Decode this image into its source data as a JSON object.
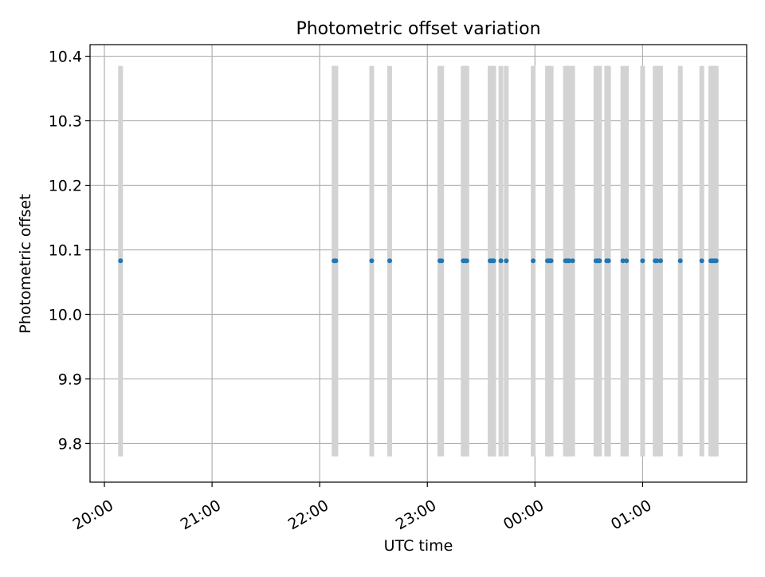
{
  "chart_data": {
    "type": "scatter",
    "title": "Photometric offset variation",
    "xlabel": "UTC time",
    "ylabel": "Photometric offset",
    "xlim": [
      "19:52",
      "25:58"
    ],
    "ylim": [
      9.74,
      10.418
    ],
    "x_ticks": [
      "20:00",
      "21:00",
      "22:00",
      "23:00",
      "00:00",
      "01:00"
    ],
    "x_tick_values": [
      "20:00",
      "21:00",
      "22:00",
      "23:00",
      "24:00",
      "25:00"
    ],
    "y_ticks": [
      "9.8",
      "9.9",
      "10.0",
      "10.1",
      "10.2",
      "10.3",
      "10.4"
    ],
    "y_tick_values": [
      9.8,
      9.9,
      10.0,
      10.1,
      10.2,
      10.3,
      10.4
    ],
    "grid": true,
    "error_range": [
      9.78,
      10.385
    ],
    "point_color": "#1f77b4",
    "band_color": "#d3d3d3",
    "points": [
      {
        "x": "20:09",
        "y": 10.083
      },
      {
        "x": "22:08",
        "y": 10.083
      },
      {
        "x": "22:09",
        "y": 10.083
      },
      {
        "x": "22:29",
        "y": 10.083
      },
      {
        "x": "22:39",
        "y": 10.083
      },
      {
        "x": "23:07",
        "y": 10.083
      },
      {
        "x": "23:08",
        "y": 10.083
      },
      {
        "x": "23:20",
        "y": 10.083
      },
      {
        "x": "23:21",
        "y": 10.083
      },
      {
        "x": "23:22",
        "y": 10.083
      },
      {
        "x": "23:35",
        "y": 10.083
      },
      {
        "x": "23:36",
        "y": 10.083
      },
      {
        "x": "23:37",
        "y": 10.083
      },
      {
        "x": "23:41",
        "y": 10.083
      },
      {
        "x": "23:44",
        "y": 10.083
      },
      {
        "x": "23:59",
        "y": 10.083
      },
      {
        "x": "24:07",
        "y": 10.083
      },
      {
        "x": "24:08",
        "y": 10.083
      },
      {
        "x": "24:09",
        "y": 10.083
      },
      {
        "x": "24:17",
        "y": 10.083
      },
      {
        "x": "24:18",
        "y": 10.083
      },
      {
        "x": "24:19",
        "y": 10.083
      },
      {
        "x": "24:21",
        "y": 10.083
      },
      {
        "x": "24:34",
        "y": 10.083
      },
      {
        "x": "24:35",
        "y": 10.083
      },
      {
        "x": "24:36",
        "y": 10.083
      },
      {
        "x": "24:40",
        "y": 10.083
      },
      {
        "x": "24:41",
        "y": 10.083
      },
      {
        "x": "24:49",
        "y": 10.083
      },
      {
        "x": "24:51",
        "y": 10.083
      },
      {
        "x": "25:00",
        "y": 10.083
      },
      {
        "x": "25:07",
        "y": 10.083
      },
      {
        "x": "25:08",
        "y": 10.083
      },
      {
        "x": "25:10",
        "y": 10.083
      },
      {
        "x": "25:21",
        "y": 10.083
      },
      {
        "x": "25:33",
        "y": 10.083
      },
      {
        "x": "25:38",
        "y": 10.083
      },
      {
        "x": "25:39",
        "y": 10.083
      },
      {
        "x": "25:40",
        "y": 10.083
      },
      {
        "x": "25:41",
        "y": 10.083
      }
    ]
  }
}
